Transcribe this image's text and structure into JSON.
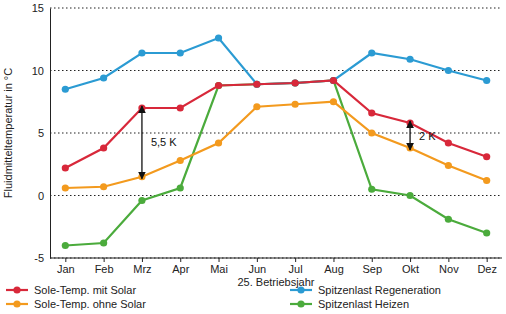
{
  "chart_data": {
    "type": "line",
    "y_label": "Fluidmitteltemperatur in °C",
    "x_label": "25. Betriebsjahr",
    "categories": [
      "Jan",
      "Feb",
      "Mrz",
      "Apr",
      "Mai",
      "Jun",
      "Jul",
      "Aug",
      "Sep",
      "Okt",
      "Nov",
      "Dez"
    ],
    "series": [
      {
        "name": "Sole-Temp. mit Solar",
        "color": "#d8283a",
        "marker": "circle",
        "values": [
          2.2,
          3.8,
          7.0,
          7.0,
          8.8,
          8.9,
          9.0,
          9.2,
          6.6,
          5.8,
          4.2,
          3.1
        ]
      },
      {
        "name": "Sole-Temp. ohne Solar",
        "color": "#f39a1e",
        "marker": "circle",
        "values": [
          0.6,
          0.7,
          1.5,
          2.8,
          4.2,
          7.1,
          7.3,
          7.5,
          5.0,
          3.8,
          2.4,
          1.2
        ]
      },
      {
        "name": "Spitzenlast Regeneration",
        "color": "#2b9bd3",
        "marker": "circle",
        "values": [
          8.5,
          9.4,
          11.4,
          11.4,
          12.6,
          8.9,
          9.0,
          9.2,
          11.4,
          10.9,
          10.0,
          9.2
        ]
      },
      {
        "name": "Spitzenlast Heizen",
        "color": "#4bab3c",
        "marker": "circle",
        "values": [
          -4.0,
          -3.8,
          -0.4,
          0.6,
          8.8,
          8.9,
          9.0,
          9.2,
          0.5,
          0.0,
          -1.9,
          -3.0
        ]
      }
    ],
    "annotations": [
      {
        "text": "5,5 K",
        "x": "Mrz"
      },
      {
        "text": "2 K",
        "x": "Okt"
      }
    ],
    "ylim": [
      -5,
      15
    ],
    "yticks": [
      -5,
      0,
      5,
      10,
      15
    ],
    "grid": true,
    "legend": "bottom"
  }
}
